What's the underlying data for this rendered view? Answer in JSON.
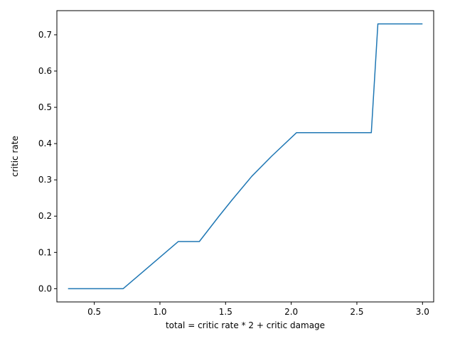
{
  "chart_data": {
    "type": "line",
    "title": "",
    "xlabel": "total = critic rate * 2 + critic damage",
    "ylabel": "critic rate",
    "xlim": [
      0.215,
      3.085
    ],
    "ylim": [
      -0.0365,
      0.7665
    ],
    "grid": false,
    "legend": "none",
    "x_ticks": [
      {
        "value": 0.5,
        "label": "0.5"
      },
      {
        "value": 1.0,
        "label": "1.0"
      },
      {
        "value": 1.5,
        "label": "1.5"
      },
      {
        "value": 2.0,
        "label": "2.0"
      },
      {
        "value": 2.5,
        "label": "2.5"
      },
      {
        "value": 3.0,
        "label": "3.0"
      }
    ],
    "y_ticks": [
      {
        "value": 0.0,
        "label": "0.0"
      },
      {
        "value": 0.1,
        "label": "0.1"
      },
      {
        "value": 0.2,
        "label": "0.2"
      },
      {
        "value": 0.3,
        "label": "0.3"
      },
      {
        "value": 0.4,
        "label": "0.4"
      },
      {
        "value": 0.5,
        "label": "0.5"
      },
      {
        "value": 0.6,
        "label": "0.6"
      },
      {
        "value": 0.7,
        "label": "0.7"
      }
    ],
    "series": [
      {
        "color": "#1f77b4",
        "x": [
          0.3,
          0.72,
          1.14,
          1.3,
          1.45,
          1.55,
          1.7,
          1.85,
          2.04,
          2.3,
          2.61,
          2.63,
          2.66,
          2.8,
          3.0
        ],
        "y": [
          0.0,
          0.0,
          0.13,
          0.13,
          0.2,
          0.245,
          0.31,
          0.365,
          0.43,
          0.43,
          0.43,
          0.55,
          0.73,
          0.73,
          0.73
        ]
      }
    ]
  }
}
